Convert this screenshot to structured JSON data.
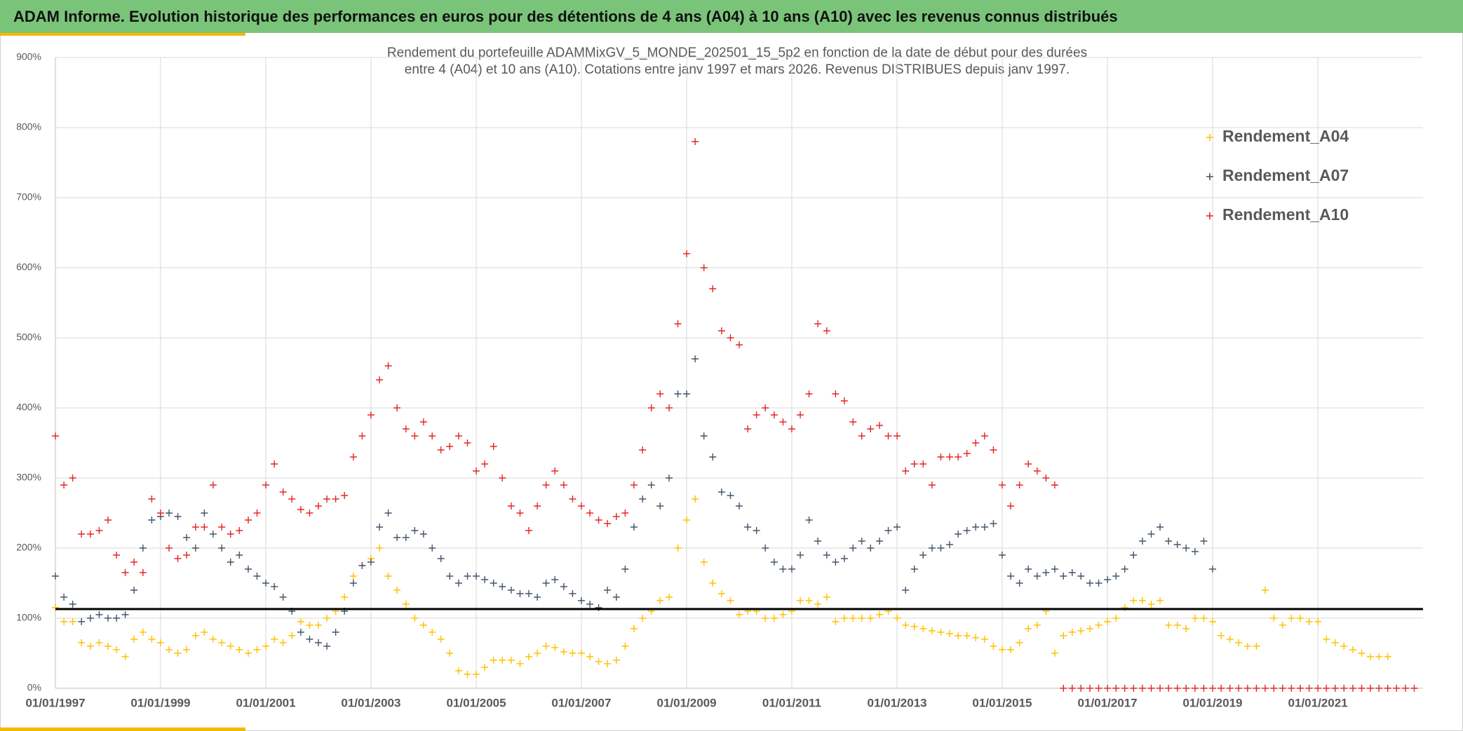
{
  "chart_data": {
    "type": "scatter",
    "title": "ADAM Informe. Evolution historique des performances en euros pour des détentions de 4 ans (A04) à 10 ans (A10) avec les revenus connus distribués",
    "subtitle": [
      "Rendement du portefeuille ADAMMixGV_5_MONDE_202501_15_5p2  en fonction de la date de début pour des durées",
      "entre 4 (A04) et 10 ans (A10). Cotations entre janv 1997 et mars 2026. Revenus DISTRIBUES depuis janv 1997."
    ],
    "x": [
      "1997-01-01",
      "1997-03-01",
      "1997-05-01",
      "1997-07-01",
      "1997-09-01",
      "1997-11-01",
      "1998-01-01",
      "1998-03-01",
      "1998-05-01",
      "1998-07-01",
      "1998-09-01",
      "1998-11-01",
      "1999-01-01",
      "1999-03-01",
      "1999-05-01",
      "1999-07-01",
      "1999-09-01",
      "1999-11-01",
      "2000-01-01",
      "2000-03-01",
      "2000-05-01",
      "2000-07-01",
      "2000-09-01",
      "2000-11-01",
      "2001-01-01",
      "2001-03-01",
      "2001-05-01",
      "2001-07-01",
      "2001-09-01",
      "2001-11-01",
      "2002-01-01",
      "2002-03-01",
      "2002-05-01",
      "2002-07-01",
      "2002-09-01",
      "2002-11-01",
      "2003-01-01",
      "2003-03-01",
      "2003-05-01",
      "2003-07-01",
      "2003-09-01",
      "2003-11-01",
      "2004-01-01",
      "2004-03-01",
      "2004-05-01",
      "2004-07-01",
      "2004-09-01",
      "2004-11-01",
      "2005-01-01",
      "2005-03-01",
      "2005-05-01",
      "2005-07-01",
      "2005-09-01",
      "2005-11-01",
      "2006-01-01",
      "2006-03-01",
      "2006-05-01",
      "2006-07-01",
      "2006-09-01",
      "2006-11-01",
      "2007-01-01",
      "2007-03-01",
      "2007-05-01",
      "2007-07-01",
      "2007-09-01",
      "2007-11-01",
      "2008-01-01",
      "2008-03-01",
      "2008-05-01",
      "2008-07-01",
      "2008-09-01",
      "2008-11-01",
      "2009-01-01",
      "2009-03-01",
      "2009-05-01",
      "2009-07-01",
      "2009-09-01",
      "2009-11-01",
      "2010-01-01",
      "2010-03-01",
      "2010-05-01",
      "2010-07-01",
      "2010-09-01",
      "2010-11-01",
      "2011-01-01",
      "2011-03-01",
      "2011-05-01",
      "2011-07-01",
      "2011-09-01",
      "2011-11-01",
      "2012-01-01",
      "2012-03-01",
      "2012-05-01",
      "2012-07-01",
      "2012-09-01",
      "2012-11-01",
      "2013-01-01",
      "2013-03-01",
      "2013-05-01",
      "2013-07-01",
      "2013-09-01",
      "2013-11-01",
      "2014-01-01",
      "2014-03-01",
      "2014-05-01",
      "2014-07-01",
      "2014-09-01",
      "2014-11-01",
      "2015-01-01",
      "2015-03-01",
      "2015-05-01",
      "2015-07-01",
      "2015-09-01",
      "2015-11-01",
      "2016-01-01",
      "2016-03-01",
      "2016-05-01",
      "2016-07-01",
      "2016-09-01",
      "2016-11-01",
      "2017-01-01",
      "2017-03-01",
      "2017-05-01",
      "2017-07-01",
      "2017-09-01",
      "2017-11-01",
      "2018-01-01",
      "2018-03-01",
      "2018-05-01",
      "2018-07-01",
      "2018-09-01",
      "2018-11-01",
      "2019-01-01",
      "2019-03-01",
      "2019-05-01",
      "2019-07-01",
      "2019-09-01",
      "2019-11-01",
      "2020-01-01",
      "2020-03-01",
      "2020-05-01",
      "2020-07-01",
      "2020-09-01",
      "2020-11-01",
      "2021-01-01",
      "2021-03-01",
      "2021-05-01",
      "2021-07-01",
      "2021-09-01",
      "2021-11-01",
      "2022-01-01",
      "2022-03-01",
      "2022-05-01",
      "2022-07-01",
      "2022-09-01",
      "2022-11-01"
    ],
    "series": [
      {
        "name": "Rendement_A04",
        "color": "#ffc000",
        "values": [
          115,
          95,
          95,
          65,
          60,
          65,
          60,
          55,
          45,
          70,
          80,
          70,
          65,
          55,
          50,
          55,
          75,
          80,
          70,
          65,
          60,
          55,
          50,
          55,
          60,
          70,
          65,
          75,
          95,
          90,
          90,
          100,
          110,
          130,
          160,
          175,
          185,
          200,
          160,
          140,
          120,
          100,
          90,
          80,
          70,
          50,
          25,
          20,
          20,
          30,
          40,
          40,
          40,
          35,
          45,
          50,
          60,
          58,
          52,
          50,
          50,
          45,
          38,
          35,
          40,
          60,
          85,
          100,
          110,
          125,
          130,
          200,
          240,
          270,
          180,
          150,
          135,
          125,
          105,
          110,
          110,
          100,
          100,
          105,
          110,
          125,
          125,
          120,
          130,
          95,
          100,
          100,
          100,
          100,
          105,
          110,
          100,
          90,
          88,
          85,
          82,
          80,
          78,
          75,
          75,
          72,
          70,
          60,
          55,
          55,
          65,
          85,
          90,
          110,
          50,
          75,
          80,
          82,
          85,
          90,
          95,
          100,
          115,
          125,
          125,
          120,
          125,
          90,
          90,
          85,
          100,
          100,
          95,
          75,
          70,
          65,
          60,
          60,
          140,
          100,
          90,
          100,
          100,
          95,
          95,
          70,
          65,
          60,
          55,
          50,
          45,
          45,
          45,
          null,
          null,
          null
        ]
      },
      {
        "name": "Rendement_A07",
        "color": "#44546a",
        "values": [
          160,
          130,
          120,
          95,
          100,
          105,
          100,
          100,
          105,
          140,
          200,
          240,
          245,
          250,
          245,
          215,
          200,
          250,
          220,
          200,
          180,
          190,
          170,
          160,
          150,
          145,
          130,
          110,
          80,
          70,
          65,
          60,
          80,
          110,
          150,
          175,
          180,
          230,
          250,
          215,
          215,
          225,
          220,
          200,
          185,
          160,
          150,
          160,
          160,
          155,
          150,
          145,
          140,
          135,
          135,
          130,
          150,
          155,
          145,
          135,
          125,
          120,
          115,
          140,
          130,
          170,
          230,
          270,
          290,
          260,
          300,
          420,
          420,
          470,
          360,
          330,
          280,
          275,
          260,
          230,
          225,
          200,
          180,
          170,
          170,
          190,
          240,
          210,
          190,
          180,
          185,
          200,
          210,
          200,
          210,
          225,
          230,
          140,
          170,
          190,
          200,
          200,
          205,
          220,
          225,
          230,
          230,
          235,
          190,
          160,
          150,
          170,
          160,
          165,
          170,
          160,
          165,
          160,
          150,
          150,
          155,
          160,
          170,
          190,
          210,
          220,
          230,
          210,
          205,
          200,
          195,
          210,
          170,
          null,
          null,
          null,
          null,
          null,
          null,
          null,
          null,
          null,
          null,
          null,
          null,
          null,
          null,
          null,
          null,
          null,
          null,
          null,
          null,
          null,
          null,
          null
        ]
      },
      {
        "name": "Rendement_A10",
        "color": "#e32626",
        "values": [
          360,
          290,
          300,
          220,
          220,
          225,
          240,
          190,
          165,
          180,
          165,
          270,
          250,
          200,
          185,
          190,
          230,
          230,
          290,
          230,
          220,
          225,
          240,
          250,
          290,
          320,
          280,
          270,
          255,
          250,
          260,
          270,
          270,
          275,
          330,
          360,
          390,
          440,
          460,
          400,
          370,
          360,
          380,
          360,
          340,
          345,
          360,
          350,
          310,
          320,
          345,
          300,
          260,
          250,
          225,
          260,
          290,
          310,
          290,
          270,
          260,
          250,
          240,
          235,
          245,
          250,
          290,
          340,
          400,
          420,
          400,
          520,
          620,
          780,
          600,
          570,
          510,
          500,
          490,
          370,
          390,
          400,
          390,
          380,
          370,
          390,
          420,
          520,
          510,
          420,
          410,
          380,
          360,
          370,
          375,
          360,
          360,
          310,
          320,
          320,
          290,
          330,
          330,
          330,
          335,
          350,
          360,
          340,
          290,
          260,
          290,
          320,
          310,
          300,
          290,
          0,
          0,
          0,
          0,
          0,
          0,
          0,
          0,
          0,
          0,
          0,
          0,
          0,
          0,
          0,
          0,
          0,
          0,
          0,
          0,
          0,
          0,
          0,
          0,
          0,
          0,
          0,
          0,
          0,
          0,
          0,
          0,
          0,
          0,
          0,
          0,
          0,
          0,
          0,
          0,
          0
        ]
      }
    ],
    "xlim": [
      "1997-01-01",
      "2023-01-01"
    ],
    "xticks": [
      {
        "value": "1997-01-01",
        "label": "01/01/1997"
      },
      {
        "value": "1999-01-01",
        "label": "01/01/1999"
      },
      {
        "value": "2001-01-01",
        "label": "01/01/2001"
      },
      {
        "value": "2003-01-01",
        "label": "01/01/2003"
      },
      {
        "value": "2005-01-01",
        "label": "01/01/2005"
      },
      {
        "value": "2007-01-01",
        "label": "01/01/2007"
      },
      {
        "value": "2009-01-01",
        "label": "01/01/2009"
      },
      {
        "value": "2011-01-01",
        "label": "01/01/2011"
      },
      {
        "value": "2013-01-01",
        "label": "01/01/2013"
      },
      {
        "value": "2015-01-01",
        "label": "01/01/2015"
      },
      {
        "value": "2017-01-01",
        "label": "01/01/2017"
      },
      {
        "value": "2019-01-01",
        "label": "01/01/2019"
      },
      {
        "value": "2021-01-01",
        "label": "01/01/2021"
      }
    ],
    "ylim": [
      0,
      900
    ],
    "yticks": [
      {
        "value": 0,
        "label": "0%"
      },
      {
        "value": 100,
        "label": "100%"
      },
      {
        "value": 200,
        "label": "200%"
      },
      {
        "value": 300,
        "label": "300%"
      },
      {
        "value": 400,
        "label": "400%"
      },
      {
        "value": 500,
        "label": "500%"
      },
      {
        "value": 600,
        "label": "600%"
      },
      {
        "value": 700,
        "label": "700%"
      },
      {
        "value": 800,
        "label": "800%"
      },
      {
        "value": 900,
        "label": "900%"
      }
    ],
    "reference_line": 113,
    "grid": true,
    "legend": "upper right"
  }
}
